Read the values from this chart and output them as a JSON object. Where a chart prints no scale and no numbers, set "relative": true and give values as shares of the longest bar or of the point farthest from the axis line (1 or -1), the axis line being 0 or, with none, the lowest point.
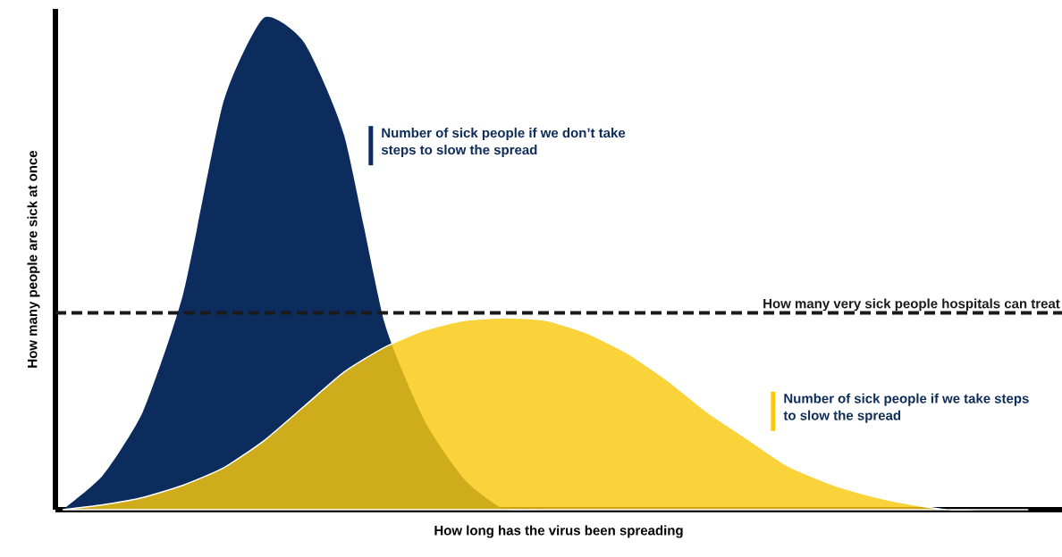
{
  "chart_data": {
    "type": "area",
    "relative": true,
    "xlabel": "How long has the virus been spreading",
    "ylabel": "How many people are sick at once",
    "categories": [
      null,
      null,
      null,
      null,
      null,
      null,
      null,
      null,
      null,
      null,
      null,
      null,
      null,
      null,
      null,
      null,
      null,
      null,
      null,
      null,
      null,
      null,
      null,
      null,
      null
    ],
    "series": [
      {
        "name": "Number of sick people if we don’t take steps to slow the spread",
        "color": "#0b2c5c",
        "values": [
          0,
          0.07,
          0.2,
          0.44,
          0.83,
          1,
          0.95,
          0.76,
          0.38,
          0.18,
          0.06,
          0,
          0,
          0,
          0,
          0,
          0,
          0,
          0,
          0,
          0,
          0,
          0,
          0,
          0
        ]
      },
      {
        "name": "Number of sick people if we take steps to slow the spread",
        "color": "#f9c80e",
        "values": [
          0,
          0.01,
          0.025,
          0.05,
          0.085,
          0.14,
          0.21,
          0.28,
          0.33,
          0.365,
          0.385,
          0.39,
          0.385,
          0.36,
          0.32,
          0.265,
          0.2,
          0.145,
          0.09,
          0.055,
          0.03,
          0.012,
          0,
          0,
          0
        ]
      }
    ],
    "ref_lines": [
      {
        "axis": "y",
        "value": 0.4,
        "label": "How many very sick people hospitals can treat",
        "line_style": "dashed",
        "color": "#1a1a1a"
      }
    ]
  }
}
